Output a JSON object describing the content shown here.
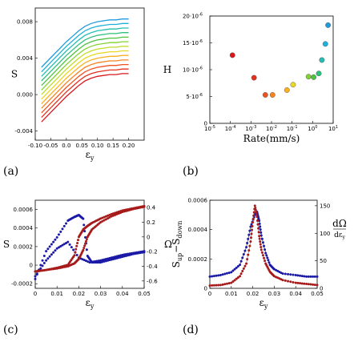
{
  "chart_data": [
    {
      "panel": "(a)",
      "type": "line",
      "xlabel": "ε",
      "xlabel_sub": "y",
      "ylabel": "S",
      "xlim": [
        -0.1,
        0.25
      ],
      "ylim": [
        -0.005,
        0.0095
      ],
      "xticks": [
        "-0.10",
        "-0.05",
        "0.0",
        "0.05",
        "0.10",
        "0.15",
        "0.20"
      ],
      "yticks": [
        "-0.004",
        "0.000",
        "0.004",
        "0.008"
      ],
      "x": [
        -0.08,
        -0.06,
        -0.04,
        -0.02,
        0.0,
        0.02,
        0.04,
        0.06,
        0.08,
        0.1,
        0.12,
        0.14,
        0.16,
        0.18,
        0.2
      ],
      "series": [
        {
          "color": "#d7191c",
          "values": [
            -0.003,
            -0.0023,
            -0.0016,
            -0.0009,
            -0.0002,
            0.0004,
            0.001,
            0.0015,
            0.0018,
            0.002,
            0.0021,
            0.0022,
            0.0022,
            0.0023,
            0.0023
          ]
        },
        {
          "color": "#e4301e",
          "values": [
            -0.0025,
            -0.0018,
            -0.0011,
            -0.0004,
            0.0003,
            0.0009,
            0.0015,
            0.002,
            0.0023,
            0.0025,
            0.0026,
            0.0027,
            0.0027,
            0.0028,
            0.0028
          ]
        },
        {
          "color": "#f0521f",
          "values": [
            -0.002,
            -0.0013,
            -0.0006,
            0.0001,
            0.0008,
            0.0014,
            0.002,
            0.0025,
            0.0028,
            0.003,
            0.0031,
            0.0032,
            0.0032,
            0.0033,
            0.0033
          ]
        },
        {
          "color": "#f7831f",
          "values": [
            -0.0015,
            -0.0008,
            -0.0001,
            0.0006,
            0.0013,
            0.0019,
            0.0025,
            0.003,
            0.0033,
            0.0035,
            0.0036,
            0.0037,
            0.0037,
            0.0038,
            0.0038
          ]
        },
        {
          "color": "#f9b020",
          "values": [
            -0.001,
            -0.0003,
            0.0004,
            0.0011,
            0.0018,
            0.0024,
            0.003,
            0.0035,
            0.0038,
            0.004,
            0.0041,
            0.0042,
            0.0042,
            0.0043,
            0.0043
          ]
        },
        {
          "color": "#e8d724",
          "values": [
            -0.0005,
            0.0002,
            0.0009,
            0.0016,
            0.0023,
            0.0029,
            0.0035,
            0.004,
            0.0043,
            0.0045,
            0.0046,
            0.0047,
            0.0047,
            0.0048,
            0.0048
          ]
        },
        {
          "color": "#bede2a",
          "values": [
            0.0,
            0.0007,
            0.0014,
            0.0021,
            0.0028,
            0.0034,
            0.004,
            0.0045,
            0.0048,
            0.005,
            0.0051,
            0.0052,
            0.0052,
            0.0053,
            0.0053
          ]
        },
        {
          "color": "#82d132",
          "values": [
            0.0005,
            0.0012,
            0.0019,
            0.0026,
            0.0033,
            0.0039,
            0.0045,
            0.005,
            0.0053,
            0.0055,
            0.0056,
            0.0057,
            0.0057,
            0.0058,
            0.0058
          ]
        },
        {
          "color": "#4cc440",
          "values": [
            0.001,
            0.0017,
            0.0024,
            0.0031,
            0.0038,
            0.0044,
            0.005,
            0.0055,
            0.0058,
            0.006,
            0.0061,
            0.0062,
            0.0062,
            0.0063,
            0.0063
          ]
        },
        {
          "color": "#2fbf7f",
          "values": [
            0.0015,
            0.0022,
            0.0029,
            0.0036,
            0.0043,
            0.0049,
            0.0055,
            0.006,
            0.0063,
            0.0065,
            0.0066,
            0.0067,
            0.0067,
            0.0068,
            0.0068
          ]
        },
        {
          "color": "#22bdb4",
          "values": [
            0.002,
            0.0027,
            0.0034,
            0.0041,
            0.0048,
            0.0054,
            0.006,
            0.0065,
            0.0068,
            0.007,
            0.0071,
            0.0072,
            0.0072,
            0.0073,
            0.0073
          ]
        },
        {
          "color": "#1fb0d8",
          "values": [
            0.0025,
            0.0032,
            0.0039,
            0.0046,
            0.0053,
            0.0059,
            0.0065,
            0.007,
            0.0073,
            0.0075,
            0.0076,
            0.0077,
            0.0077,
            0.0078,
            0.0078
          ]
        },
        {
          "color": "#1e9bdc",
          "values": [
            0.003,
            0.0037,
            0.0044,
            0.0051,
            0.0058,
            0.0064,
            0.007,
            0.0075,
            0.0078,
            0.008,
            0.0081,
            0.0082,
            0.0082,
            0.0083,
            0.0083
          ]
        }
      ]
    },
    {
      "panel": "(b)",
      "type": "scatter",
      "xlabel": "Rate(mm/s)",
      "ylabel": "H",
      "xscale": "log",
      "xlim": [
        -5,
        1
      ],
      "ylim": [
        0,
        2e-05
      ],
      "xticks": [
        {
          "base": "10",
          "exp": "-5"
        },
        {
          "base": "10",
          "exp": "-4"
        },
        {
          "base": "10",
          "exp": "-3"
        },
        {
          "base": "10",
          "exp": "-2"
        },
        {
          "base": "10",
          "exp": "-1"
        },
        {
          "base": "10",
          "exp": "0"
        },
        {
          "base": "10",
          "exp": "1"
        }
      ],
      "yticks": [
        {
          "v": 0,
          "text": "0"
        },
        {
          "v": 5e-06,
          "text": "5·10",
          "exp": "-6"
        },
        {
          "v": 1e-05,
          "text": "10·10",
          "exp": "-6"
        },
        {
          "v": 1.5e-05,
          "text": "15·10",
          "exp": "-6"
        },
        {
          "v": 2e-05,
          "text": "20·10",
          "exp": "-6"
        }
      ],
      "points": [
        {
          "log10x": -3.9,
          "y": 1.27e-05,
          "color": "#d7191c"
        },
        {
          "log10x": -2.85,
          "y": 8.5e-06,
          "color": "#e4301e"
        },
        {
          "log10x": -2.3,
          "y": 5.3e-06,
          "color": "#f0521f"
        },
        {
          "log10x": -1.95,
          "y": 5.3e-06,
          "color": "#f7831f"
        },
        {
          "log10x": -1.25,
          "y": 6.2e-06,
          "color": "#f9b020"
        },
        {
          "log10x": -0.95,
          "y": 7.2e-06,
          "color": "#e8d724"
        },
        {
          "log10x": -0.2,
          "y": 8.7e-06,
          "color": "#82d132"
        },
        {
          "log10x": 0.05,
          "y": 8.6e-06,
          "color": "#4cc440"
        },
        {
          "log10x": 0.3,
          "y": 9.3e-06,
          "color": "#2fbf7f"
        },
        {
          "log10x": 0.45,
          "y": 1.18e-05,
          "color": "#22bdb4"
        },
        {
          "log10x": 0.62,
          "y": 1.48e-05,
          "color": "#1fb0d8"
        },
        {
          "log10x": 0.75,
          "y": 1.83e-05,
          "color": "#1e9bdc"
        }
      ]
    },
    {
      "panel": "(c)",
      "type": "scatter",
      "xlabel": "ε",
      "xlabel_sub": "y",
      "ylabel": "S",
      "y2label": "Ω",
      "xlim": [
        0,
        0.05
      ],
      "ylim": [
        -0.00025,
        0.0007
      ],
      "y2lim": [
        -0.7,
        0.5
      ],
      "xticks": [
        "0",
        "0.01",
        "0.02",
        "0.03",
        "0.04",
        "0.05"
      ],
      "yticks": [
        "-0.0002",
        "0",
        "0.0002",
        "0.0004",
        "0.0006"
      ],
      "y2ticks": [
        "-0.6",
        "-0.4",
        "-0.2",
        "0",
        "0.2",
        "0.4"
      ],
      "series": [
        {
          "name": "",
          "color": "#1a1aa6",
          "axis": "left",
          "x": [
            0.0,
            0.005,
            0.01,
            0.015,
            0.018,
            0.02,
            0.022,
            0.024,
            0.026,
            0.03,
            0.035,
            0.04,
            0.045,
            0.05
          ],
          "values": [
            -0.00015,
            0.00015,
            0.0003,
            0.00048,
            0.00052,
            0.00054,
            0.0005,
            0.0001,
            3e-05,
            3e-05,
            6e-05,
            9e-05,
            0.00012,
            0.00014
          ]
        },
        {
          "name": "",
          "color": "#1a1aa6",
          "axis": "left",
          "x": [
            0.0,
            0.005,
            0.01,
            0.015,
            0.02,
            0.025,
            0.03,
            0.035,
            0.04,
            0.045,
            0.05
          ],
          "values": [
            -0.00012,
            5e-05,
            0.00018,
            0.00025,
            8e-05,
            3e-05,
            5e-05,
            8e-05,
            0.00011,
            0.00013,
            0.00015
          ]
        },
        {
          "name": "",
          "color": "#a61a1a",
          "axis": "right",
          "x": [
            0.0,
            0.005,
            0.01,
            0.015,
            0.018,
            0.02,
            0.022,
            0.024,
            0.026,
            0.03,
            0.035,
            0.04,
            0.045,
            0.05
          ],
          "values": [
            -0.47,
            -0.45,
            -0.42,
            -0.38,
            -0.25,
            0.0,
            0.1,
            0.15,
            0.19,
            0.25,
            0.31,
            0.36,
            0.39,
            0.42
          ]
        },
        {
          "name": "",
          "color": "#a61a1a",
          "axis": "right",
          "x": [
            0.0,
            0.005,
            0.01,
            0.015,
            0.018,
            0.02,
            0.022,
            0.024,
            0.026,
            0.03,
            0.035,
            0.04,
            0.045,
            0.05
          ],
          "values": [
            -0.47,
            -0.45,
            -0.43,
            -0.4,
            -0.36,
            -0.3,
            -0.18,
            0.0,
            0.1,
            0.2,
            0.28,
            0.34,
            0.38,
            0.41
          ]
        }
      ]
    },
    {
      "panel": "(d)",
      "type": "scatter",
      "xlabel": "ε",
      "xlabel_sub": "y",
      "ylabel": "S",
      "ylabel_parts": [
        "S",
        "up",
        "−S",
        "down"
      ],
      "y2label_num": "dΩ",
      "y2label_den": "dε",
      "y2label_den_sub": "y",
      "xlim": [
        0,
        0.05
      ],
      "ylim": [
        0,
        0.0006
      ],
      "y2lim": [
        0,
        160
      ],
      "xticks": [
        "0",
        "0.01",
        "0.02",
        "0.03",
        "0.04",
        "0.05"
      ],
      "yticks": [
        "0",
        "0.0002",
        "0.0004",
        "0.0006"
      ],
      "y2ticks": [
        "0",
        "50",
        "100",
        "150"
      ],
      "series": [
        {
          "name": "",
          "color": "#1a1aa6",
          "axis": "left",
          "line": true,
          "x": [
            0.0,
            0.005,
            0.01,
            0.014,
            0.017,
            0.019,
            0.021,
            0.022,
            0.023,
            0.024,
            0.026,
            0.028,
            0.03,
            0.034,
            0.04,
            0.045,
            0.05
          ],
          "values": [
            8e-05,
            9e-05,
            0.00011,
            0.00016,
            0.00028,
            0.00042,
            0.0005,
            0.00052,
            0.00046,
            0.00036,
            0.00024,
            0.00016,
            0.00013,
            0.0001,
            9e-05,
            8e-05,
            8e-05
          ]
        },
        {
          "name": "",
          "color": "#a61a1a",
          "axis": "right",
          "line": true,
          "x": [
            0.0,
            0.005,
            0.01,
            0.014,
            0.017,
            0.019,
            0.02,
            0.021,
            0.022,
            0.023,
            0.024,
            0.026,
            0.028,
            0.03,
            0.034,
            0.04,
            0.045,
            0.05
          ],
          "values": [
            5,
            6,
            10,
            22,
            45,
            85,
            120,
            150,
            130,
            95,
            70,
            45,
            30,
            22,
            15,
            10,
            8,
            6
          ]
        }
      ]
    }
  ]
}
